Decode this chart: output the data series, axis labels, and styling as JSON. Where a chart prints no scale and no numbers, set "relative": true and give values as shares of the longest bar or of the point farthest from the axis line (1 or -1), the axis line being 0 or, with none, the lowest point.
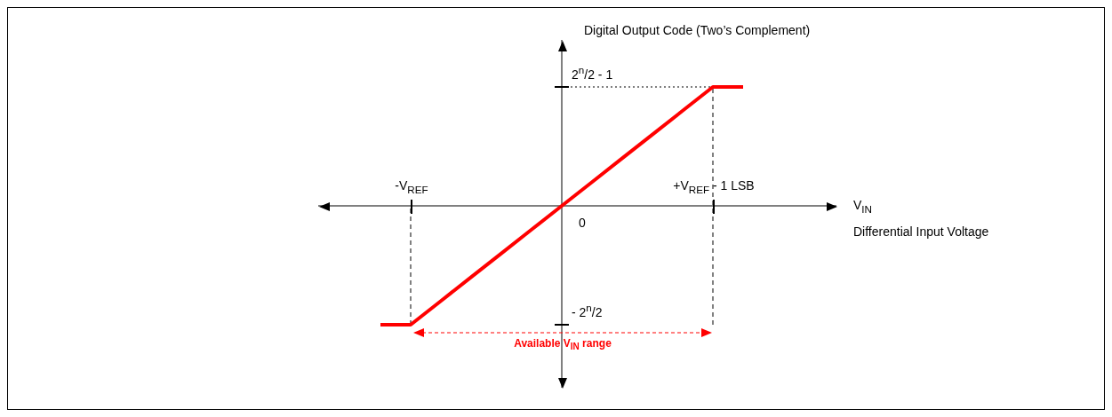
{
  "chart_data": {
    "type": "line",
    "relative": true,
    "ylabel": "Digital Output Code (Two’s Complement)",
    "annotations": [
      "Differential Input Voltage",
      "2$^{n}$/2 - 1",
      "- 2$^{n}$/2",
      "0",
      "Available V$_{IN}$ range",
      "V$_{IN}$"
    ],
    "categories": [
      null,
      "-V$_{REF}$",
      null,
      null,
      null,
      null,
      null,
      null,
      null,
      null,
      null,
      "+V$_{REF}$ - 1 LSB",
      null
    ],
    "series": [
      {
        "color": "#ff0000",
        "values": [
          -1,
          -1,
          -0.8,
          -0.6,
          -0.4,
          -0.2,
          0,
          0.2,
          0.4,
          0.6,
          0.8,
          1,
          1
        ]
      }
    ],
    "ref_lines": [
      {
        "axis": "x",
        "value": "-V$_{REF}$",
        "line_style": "dashed"
      },
      {
        "axis": "x",
        "value": "+V$_{REF}$ - 1 LSB",
        "line_style": "dashed"
      },
      {
        "axis": "y",
        "value": 1,
        "line_style": "dotted"
      }
    ],
    "marker": "none",
    "line_style": "solid",
    "legend": false
  }
}
